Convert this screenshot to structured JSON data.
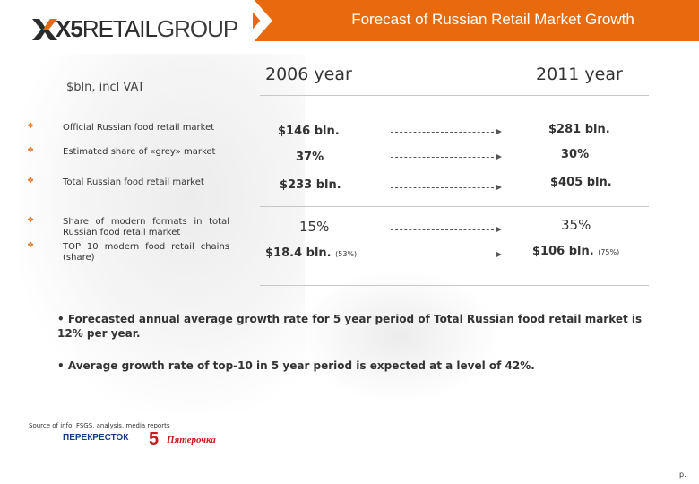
{
  "header": {
    "title": "Forecast of Russian Retail Market Growth"
  },
  "logo": {
    "text_bold": "X5",
    "text_retail": "RETAIL",
    "text_group": "GROUP"
  },
  "table": {
    "unit_label": "$bln, incl VAT",
    "col_2006": "2006 year",
    "col_2011": "2011 year",
    "rows": [
      {
        "label": "Official Russian food retail market",
        "v2006": "$146 bln.",
        "v2011": "$281 bln."
      },
      {
        "label": "Estimated share of «grey» market",
        "v2006": "37%",
        "v2011": "30%"
      },
      {
        "label": "Total Russian food retail market",
        "v2006": "$233 bln.",
        "v2011": "$405 bln."
      },
      {
        "label": "Share of modern formats in total Russian food retail market",
        "v2006": "15%",
        "v2011": "35%"
      },
      {
        "label": "TOP 10 modern food retail chains (share)",
        "v2006": "$18.4 bln.",
        "v2006_note": "(53%)",
        "v2011": "$106 bln.",
        "v2011_note": "(75%)"
      }
    ]
  },
  "notes": [
    "• Forecasted annual average growth rate for 5 year period of Total Russian food retail market is 12% per year.",
    "• Average growth rate of top-10 in 5 year period is expected at a level of 42%."
  ],
  "source": "Source of info: FSGS, analysis, media reports",
  "brands": {
    "perekrestok": "ПЕРЕКРЕСТОК",
    "pyaterochka_num": "5",
    "pyaterochka": "Пятерочка"
  },
  "page": "p.",
  "colors": {
    "accent": "#e86a0c",
    "text": "#333333"
  }
}
